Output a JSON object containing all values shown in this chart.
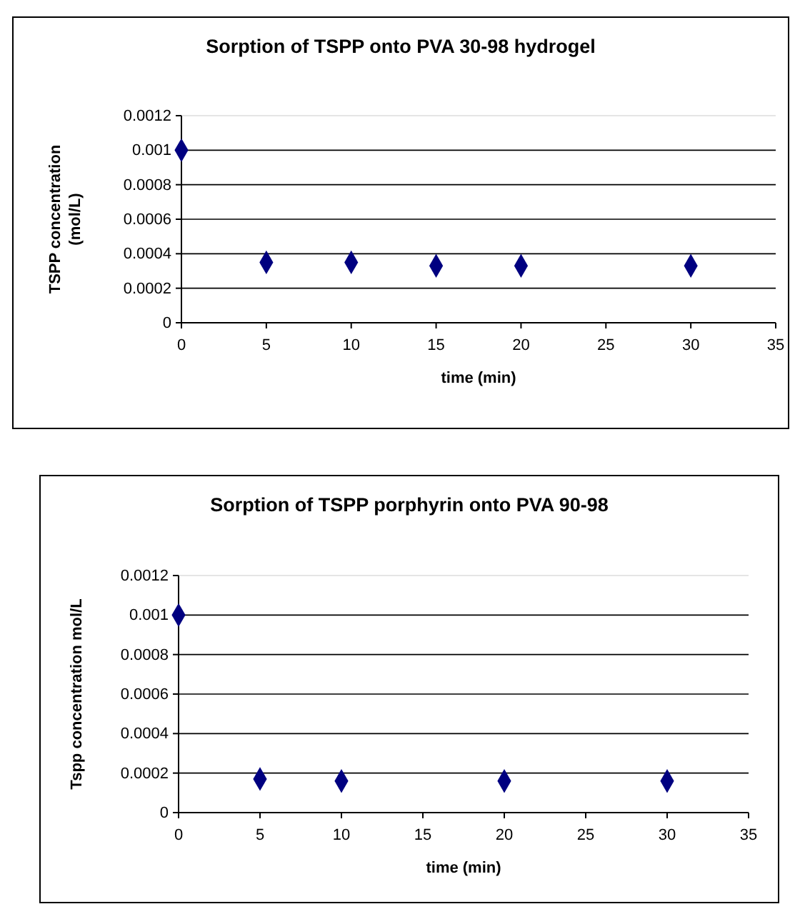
{
  "chart_data": [
    {
      "type": "scatter",
      "title": "Sorption of TSPP onto PVA 30-98 hydrogel",
      "xlabel": "time (min)",
      "ylabel": "TSPP concentration (mol/L)",
      "x": [
        0,
        5,
        10,
        15,
        20,
        30
      ],
      "values": [
        0.001,
        0.00035,
        0.00035,
        0.00033,
        0.00033,
        0.00033
      ],
      "color": "#000080",
      "xlim": [
        0,
        35
      ],
      "xticks": [
        0,
        5,
        10,
        15,
        20,
        25,
        30,
        35
      ],
      "ylim": [
        0,
        0.0012
      ],
      "yticks": [
        0,
        0.0002,
        0.0004,
        0.0006,
        0.0008,
        0.001,
        0.0012
      ],
      "grid": "y",
      "marker": "diamond"
    },
    {
      "type": "scatter",
      "title": "Sorption of TSPP porphyrin onto PVA 90-98",
      "xlabel": "time (min)",
      "ylabel": "Tspp concentration mol/L",
      "x": [
        0,
        5,
        10,
        20,
        30
      ],
      "values": [
        0.001,
        0.00017,
        0.00016,
        0.00016,
        0.00016
      ],
      "color": "#000080",
      "xlim": [
        0,
        35
      ],
      "xticks": [
        0,
        5,
        10,
        15,
        20,
        25,
        30,
        35
      ],
      "ylim": [
        0,
        0.0012
      ],
      "yticks": [
        0,
        0.0002,
        0.0004,
        0.0006,
        0.0008,
        0.001,
        0.0012
      ],
      "grid": "y",
      "marker": "diamond"
    }
  ]
}
